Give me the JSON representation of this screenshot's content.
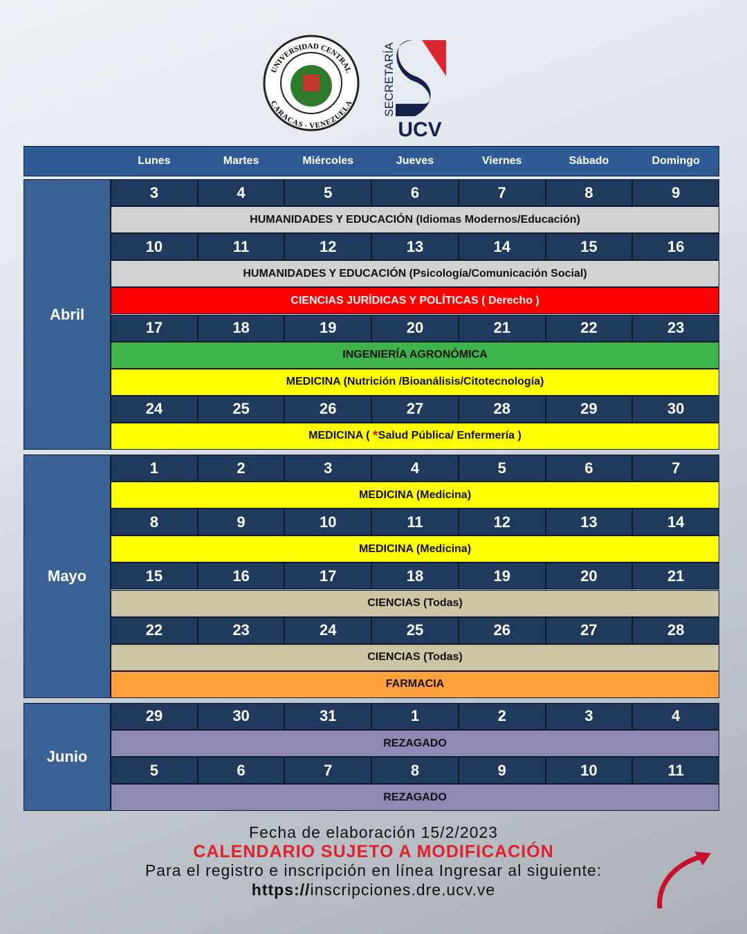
{
  "logos": {
    "seal_top": "UNIVERSIDAD CENTRAL",
    "seal_bottom": "CARACAS - VENEZUELA",
    "secretaria": "SECRETARÍA",
    "ucv": "UCV"
  },
  "weekdays": [
    "Lunes",
    "Martes",
    "Miércoles",
    "Jueves",
    "Viernes",
    "Sábado",
    "Domingo"
  ],
  "months": [
    {
      "name": "Abril",
      "rows": [
        {
          "days": [
            3,
            4,
            5,
            6,
            7,
            8,
            9
          ]
        },
        {
          "label": "HUMANIDADES Y EDUCACIÓN (Idiomas Modernos/Educación)",
          "color": "#d2d2d2"
        },
        {
          "days": [
            10,
            11,
            12,
            13,
            14,
            15,
            16
          ]
        },
        {
          "label": "HUMANIDADES Y EDUCACIÓN (Psicología/Comunicación Social)",
          "color": "#d2d2d2"
        },
        {
          "label": "CIENCIAS JURÍDICAS Y POLÍTICAS ( Derecho )",
          "color": "#ff0000"
        },
        {
          "days": [
            17,
            18,
            19,
            20,
            21,
            22,
            23
          ]
        },
        {
          "label": "INGENIERÍA AGRONÓMICA",
          "color": "#3db54a"
        },
        {
          "label": "MEDICINA (Nutrición /Bioanálisis/Citotecnología)",
          "color": "#ffff00"
        },
        {
          "days": [
            24,
            25,
            26,
            27,
            28,
            29,
            30
          ]
        },
        {
          "label": [
            "MEDICINA ( ",
            "*",
            "Salud Pública/ Enfermería )"
          ],
          "color": "#ffff00"
        }
      ]
    },
    {
      "name": "Mayo",
      "rows": [
        {
          "days": [
            1,
            2,
            3,
            4,
            5,
            6,
            7
          ]
        },
        {
          "label": "MEDICINA (Medicina)",
          "color": "#ffff00"
        },
        {
          "days": [
            8,
            9,
            10,
            11,
            12,
            13,
            14
          ]
        },
        {
          "label": "MEDICINA (Medicina)",
          "color": "#ffff00"
        },
        {
          "days": [
            15,
            16,
            17,
            18,
            19,
            20,
            21
          ]
        },
        {
          "label": "CIENCIAS (Todas)",
          "color": "#cdc6a4"
        },
        {
          "days": [
            22,
            23,
            24,
            25,
            26,
            27,
            28
          ]
        },
        {
          "label": "CIENCIAS (Todas)",
          "color": "#cdc6a4"
        },
        {
          "label": "FARMACIA",
          "color": "#ffa03c"
        }
      ]
    },
    {
      "name": "Junio",
      "rows": [
        {
          "days": [
            29,
            30,
            31,
            1,
            2,
            3,
            4
          ]
        },
        {
          "label": "REZAGADO",
          "color": "#8e89b3"
        },
        {
          "days": [
            5,
            6,
            7,
            8,
            9,
            10,
            11
          ]
        },
        {
          "label": "REZAGADO",
          "color": "#8e89b3"
        }
      ]
    }
  ],
  "footer": {
    "date": "Fecha de elaboración 15/2/2023",
    "notice": "CALENDARIO SUJETO A MODIFICACIÓN",
    "instruction": "Para el registro e inscripción en línea Ingresar al siguiente:",
    "url": [
      "https://",
      "inscripciones.dre.ucv.ve"
    ]
  }
}
